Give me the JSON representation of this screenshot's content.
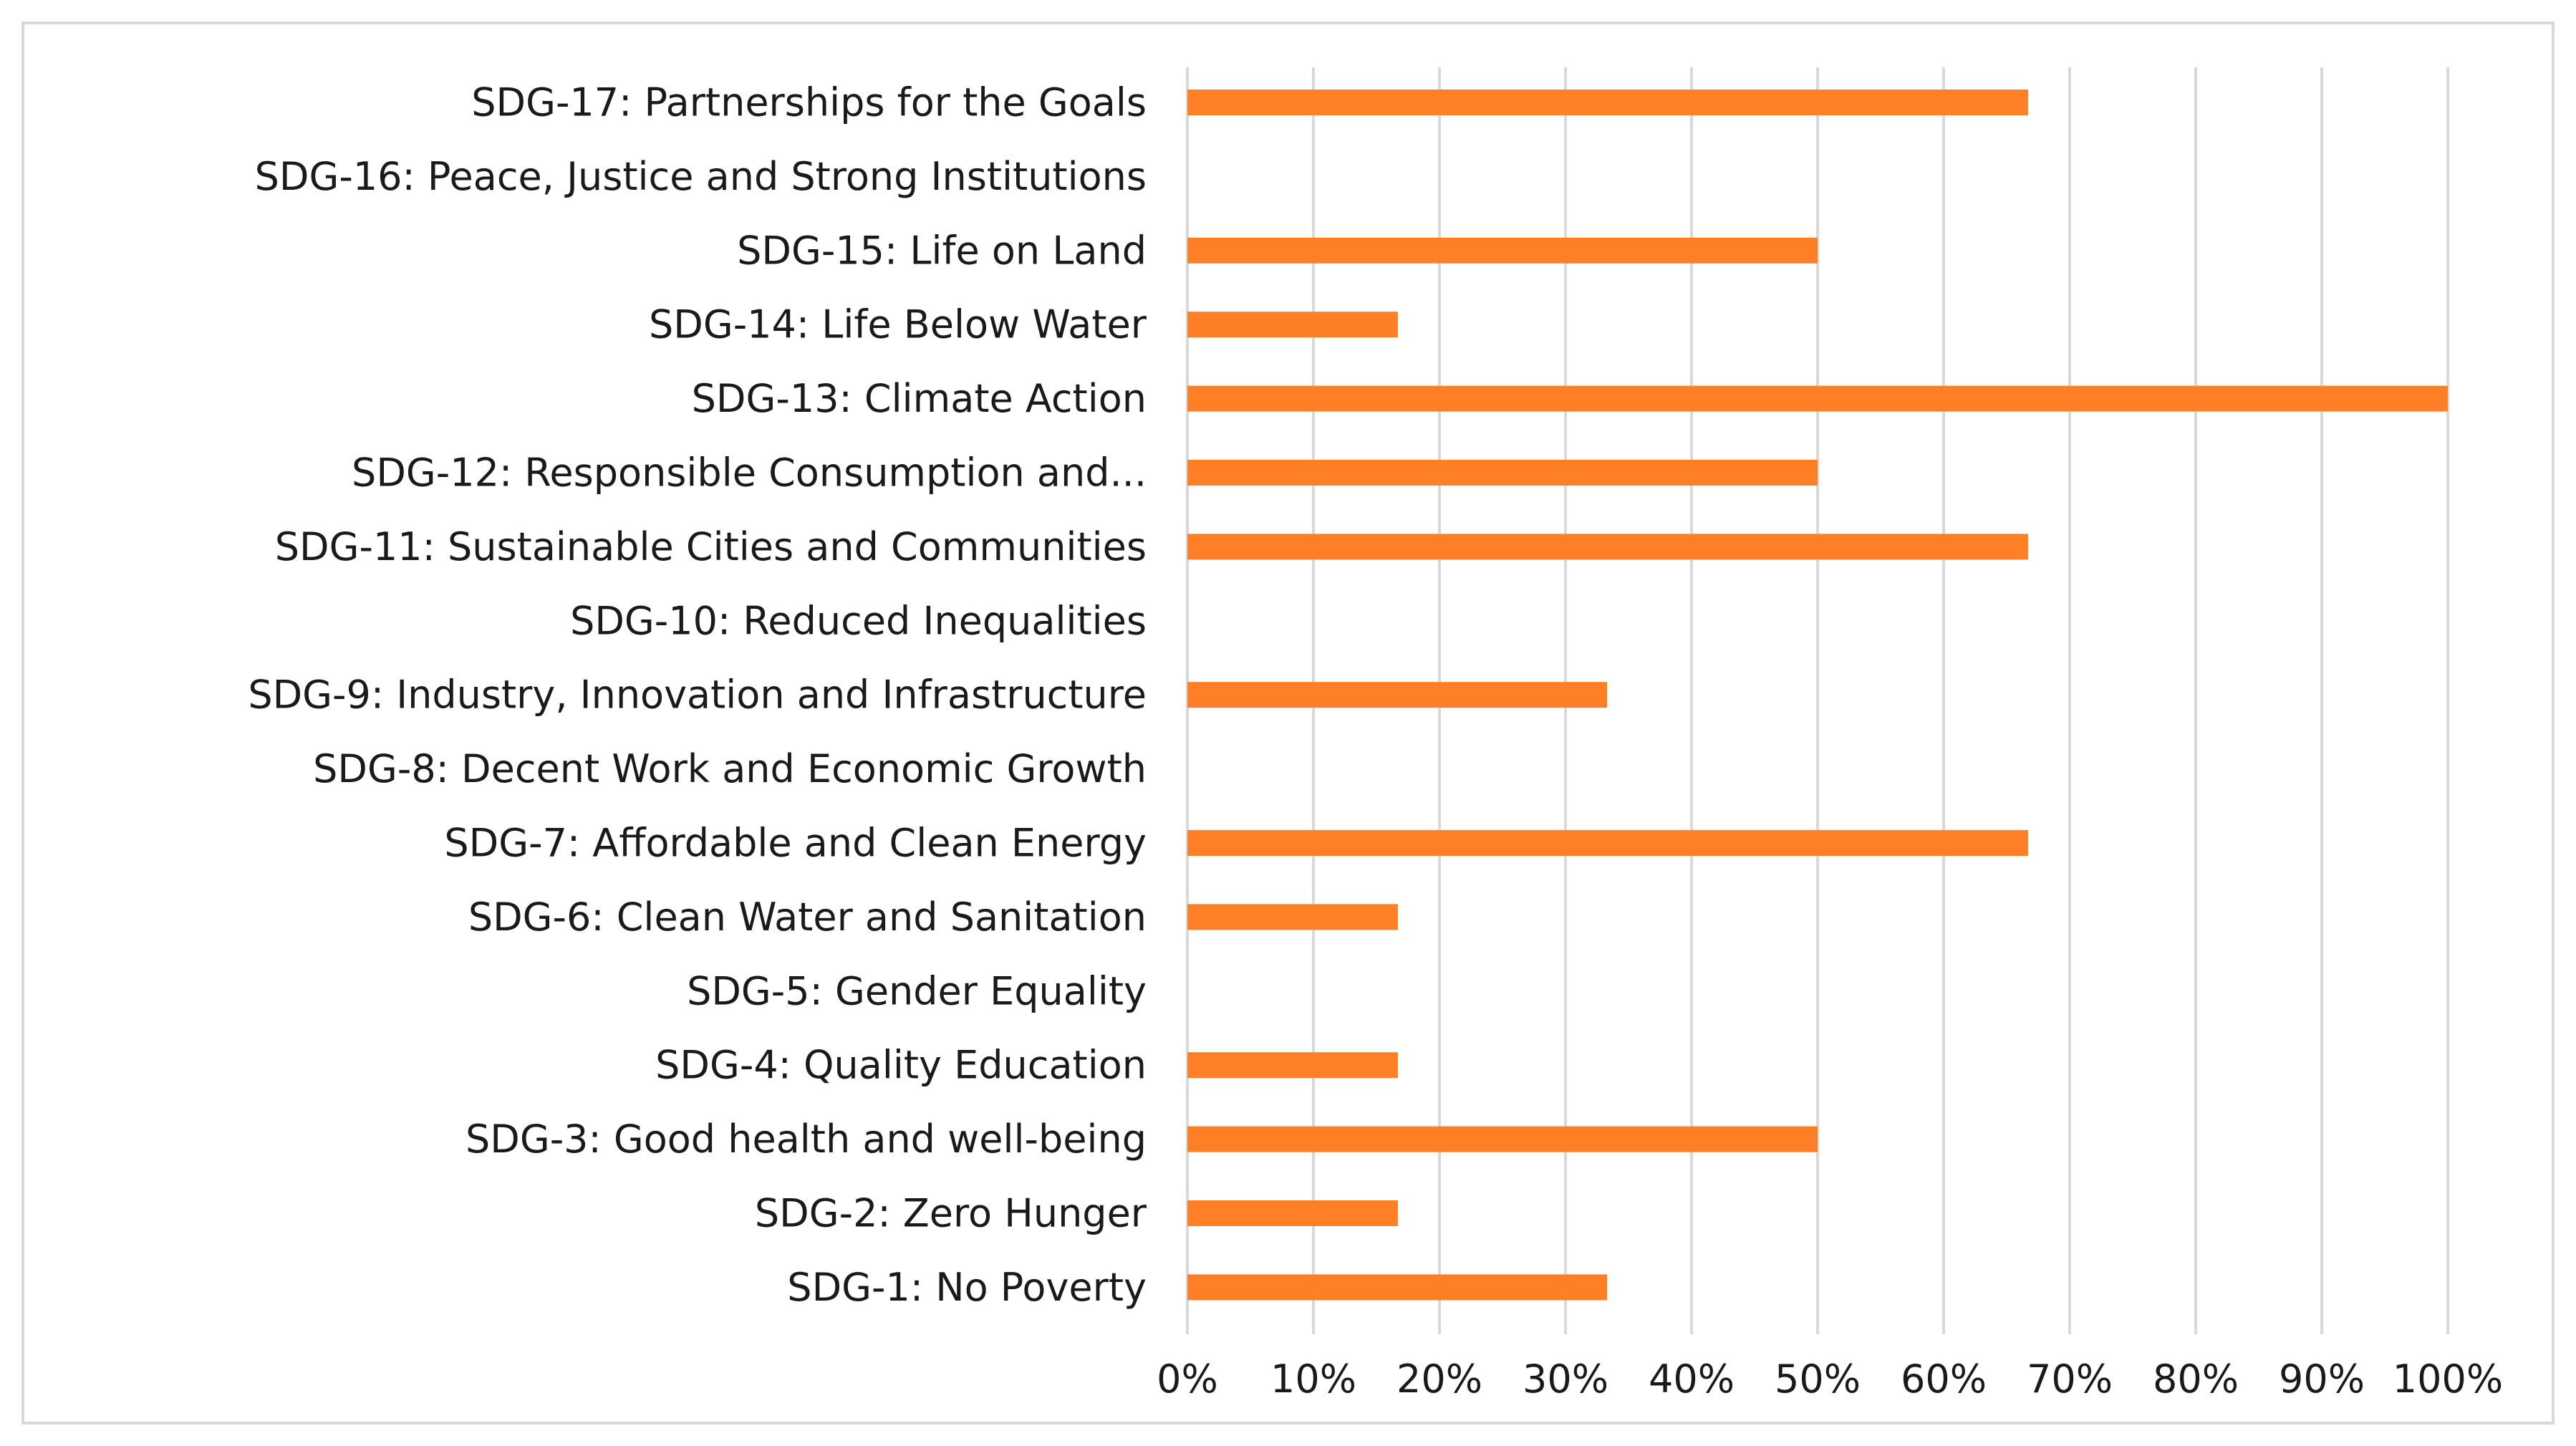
{
  "chart_data": {
    "type": "bar",
    "orientation": "horizontal",
    "title": "",
    "xlabel": "",
    "ylabel": "",
    "xlim": [
      0,
      100
    ],
    "grid": true,
    "bar_color": "#FF7F27",
    "grid_color": "#D9D9D9",
    "text_color": "#1A1A1A",
    "x_ticks": [
      "0%",
      "10%",
      "20%",
      "30%",
      "40%",
      "50%",
      "60%",
      "70%",
      "80%",
      "90%",
      "100%"
    ],
    "categories": [
      "SDG-17: Partnerships for the Goals",
      "SDG-16: Peace, Justice and Strong Institutions",
      "SDG-15: Life on Land",
      "SDG-14: Life Below Water",
      "SDG-13: Climate Action",
      "SDG-12: Responsible Consumption and...",
      "SDG-11: Sustainable Cities and Communities",
      "SDG-10: Reduced Inequalities",
      "SDG-9: Industry, Innovation and Infrastructure",
      "SDG-8: Decent Work and Economic Growth",
      "SDG-7: Affordable and Clean Energy",
      "SDG-6: Clean Water and Sanitation",
      "SDG-5: Gender Equality",
      "SDG-4: Quality Education",
      "SDG-3: Good health and well-being",
      "SDG-2: Zero Hunger",
      "SDG-1: No Poverty"
    ],
    "values": [
      66.7,
      0,
      50,
      16.7,
      100,
      50,
      66.7,
      0,
      33.3,
      0,
      66.7,
      16.7,
      0,
      16.7,
      50,
      16.7,
      33.3
    ]
  }
}
